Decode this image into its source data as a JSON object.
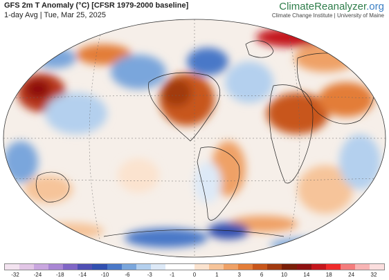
{
  "header": {
    "title": "GFS 2m T Anomaly (°C) [CFSR 1979-2000 baseline]",
    "subtitle": "1-day Avg | Tue, Mar 25, 2025"
  },
  "brand": {
    "name_part1": "ClimateReanalyzer",
    "name_part2": ".org",
    "tagline": "Climate Change Institute | University of Maine"
  },
  "colorbar": {
    "labels": [
      "-32",
      "-24",
      "-18",
      "-14",
      "-10",
      "-6",
      "-3",
      "-1",
      "0",
      "1",
      "3",
      "6",
      "10",
      "14",
      "18",
      "24",
      "32"
    ],
    "colors": [
      "#f3e3f0",
      "#e2c6e6",
      "#c9a6df",
      "#a986d4",
      "#8066c6",
      "#4f4fb4",
      "#3150b0",
      "#4a78c8",
      "#7aa6dc",
      "#b4d0ee",
      "#dde9f7",
      "#ffffff",
      "#ffffff",
      "#fbe3cf",
      "#f6c49a",
      "#efa166",
      "#e37d39",
      "#c8561b",
      "#a23a10",
      "#7a1f08",
      "#8e1111",
      "#c4161c",
      "#ef2b2b",
      "#f47c7c",
      "#f8b4b4",
      "#fbdede"
    ]
  }
}
